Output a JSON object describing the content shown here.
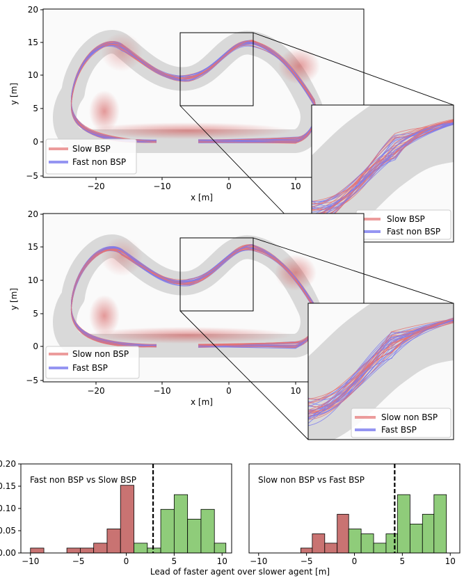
{
  "chart_data": [
    {
      "type": "scatter",
      "panel": "top",
      "xlabel": "x [m]",
      "ylabel": "y [m]",
      "xlim": [
        -28,
        17
      ],
      "ylim": [
        -5,
        20
      ],
      "x_ticks": [
        "−20",
        "−10",
        "0",
        "10"
      ],
      "x_tick_values": [
        -20,
        -10,
        0,
        10
      ],
      "y_ticks": [
        "−5",
        "0",
        "5",
        "10",
        "15",
        "20"
      ],
      "y_tick_values": [
        -5,
        0,
        5,
        10,
        15,
        20
      ],
      "legend": [
        "Slow BSP",
        "Fast non BSP"
      ],
      "inset_legend": [
        "Slow BSP",
        "Fast non BSP"
      ],
      "zoom_region": {
        "x": [
          -7,
          3.5
        ],
        "y": [
          5.3,
          15.8
        ]
      },
      "colors": {
        "series1": "#e57373",
        "series2": "#7b7bef"
      }
    },
    {
      "type": "scatter",
      "panel": "middle",
      "xlabel": "x [m]",
      "ylabel": "y [m]",
      "xlim": [
        -28,
        17
      ],
      "ylim": [
        -5,
        20
      ],
      "x_ticks": [
        "−20",
        "−10",
        "0",
        "10"
      ],
      "x_tick_values": [
        -20,
        -10,
        0,
        10
      ],
      "y_ticks": [
        "−5",
        "0",
        "5",
        "10",
        "15",
        "20"
      ],
      "y_tick_values": [
        -5,
        0,
        5,
        10,
        15,
        20
      ],
      "legend": [
        "Slow non BSP",
        "Fast BSP"
      ],
      "inset_legend": [
        "Slow non BSP",
        "Fast BSP"
      ],
      "zoom_region": {
        "x": [
          -7,
          3.5
        ],
        "y": [
          5.3,
          15.8
        ]
      },
      "colors": {
        "series1": "#e57373",
        "series2": "#7b7bef"
      }
    },
    {
      "type": "bar",
      "panel": "bottom-left",
      "annotation": "Fast non BSP vs Slow BSP",
      "xlim": [
        -11,
        11
      ],
      "ylim": [
        0,
        0.2
      ],
      "x_ticks": [
        "−10",
        "−5",
        "0",
        "5",
        "10"
      ],
      "x_tick_values": [
        -10,
        -5,
        0,
        5,
        10
      ],
      "y_ticks": [
        "0.00",
        "0.05",
        "0.10",
        "0.15",
        "0.20"
      ],
      "y_tick_values": [
        0,
        0.05,
        0.1,
        0.15,
        0.2
      ],
      "threshold": 2.8,
      "colors": {
        "negative": "#c97372",
        "positive": "#8fcc7a"
      },
      "bins": [
        {
          "x0": -10,
          "x1": -8.6,
          "value": 0.011,
          "group": "negative"
        },
        {
          "x0": -6.2,
          "x1": -4.8,
          "value": 0.011,
          "group": "negative"
        },
        {
          "x0": -4.8,
          "x1": -3.4,
          "value": 0.011,
          "group": "negative"
        },
        {
          "x0": -3.4,
          "x1": -2.0,
          "value": 0.022,
          "group": "negative"
        },
        {
          "x0": -2.0,
          "x1": -0.6,
          "value": 0.054,
          "group": "negative"
        },
        {
          "x0": -0.6,
          "x1": 0.8,
          "value": 0.152,
          "group": "negative"
        },
        {
          "x0": 0.8,
          "x1": 2.2,
          "value": 0.022,
          "group": "positive"
        },
        {
          "x0": 2.2,
          "x1": 3.6,
          "value": 0.011,
          "group": "positive"
        },
        {
          "x0": 3.6,
          "x1": 5.0,
          "value": 0.098,
          "group": "positive"
        },
        {
          "x0": 5.0,
          "x1": 6.4,
          "value": 0.131,
          "group": "positive"
        },
        {
          "x0": 6.4,
          "x1": 7.8,
          "value": 0.076,
          "group": "positive"
        },
        {
          "x0": 7.8,
          "x1": 9.2,
          "value": 0.098,
          "group": "positive"
        },
        {
          "x0": 9.2,
          "x1": 10.4,
          "value": 0.022,
          "group": "positive"
        }
      ]
    },
    {
      "type": "bar",
      "panel": "bottom-right",
      "annotation": "Slow non BSP vs Fast BSP",
      "xlim": [
        -11,
        11
      ],
      "ylim": [
        0,
        0.2
      ],
      "x_ticks": [
        "−10",
        "−5",
        "0",
        "5",
        "10"
      ],
      "x_tick_values": [
        -10,
        -5,
        0,
        5,
        10
      ],
      "threshold": 4.2,
      "colors": {
        "negative": "#c97372",
        "positive": "#8fcc7a"
      },
      "bins": [
        {
          "x0": -5.6,
          "x1": -4.4,
          "value": 0.011,
          "group": "negative"
        },
        {
          "x0": -4.4,
          "x1": -3.1,
          "value": 0.043,
          "group": "negative"
        },
        {
          "x0": -3.1,
          "x1": -1.8,
          "value": 0.022,
          "group": "negative"
        },
        {
          "x0": -1.8,
          "x1": -0.6,
          "value": 0.087,
          "group": "negative"
        },
        {
          "x0": -0.6,
          "x1": 0.7,
          "value": 0.054,
          "group": "positive"
        },
        {
          "x0": 0.7,
          "x1": 2.0,
          "value": 0.043,
          "group": "positive"
        },
        {
          "x0": 2.0,
          "x1": 3.3,
          "value": 0.022,
          "group": "positive"
        },
        {
          "x0": 3.3,
          "x1": 4.5,
          "value": 0.043,
          "group": "positive"
        },
        {
          "x0": 4.5,
          "x1": 5.8,
          "value": 0.131,
          "group": "positive"
        },
        {
          "x0": 5.8,
          "x1": 7.1,
          "value": 0.065,
          "group": "positive"
        },
        {
          "x0": 7.1,
          "x1": 8.3,
          "value": 0.087,
          "group": "positive"
        },
        {
          "x0": 8.3,
          "x1": 9.6,
          "value": 0.131,
          "group": "positive"
        }
      ]
    }
  ],
  "shared_xlabel": "Lead of faster agent over slower agent [m]"
}
